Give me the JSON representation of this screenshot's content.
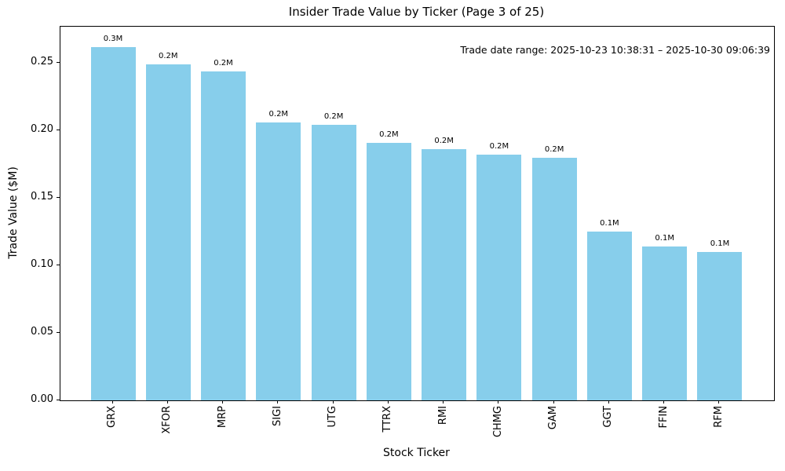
{
  "chart_data": {
    "type": "bar",
    "title": "Insider Trade Value by Ticker (Page 3 of 25)",
    "xlabel": "Stock Ticker",
    "ylabel": "Trade Value ($M)",
    "annotation": "Trade date range: 2025-10-23 10:38:31 – 2025-10-30 09:06:39",
    "categories": [
      "GRX",
      "XFOR",
      "MRP",
      "SIGI",
      "UTG",
      "TTRX",
      "RMI",
      "CHMG",
      "GAM",
      "GGT",
      "FFIN",
      "RFM"
    ],
    "values": [
      0.262,
      0.249,
      0.244,
      0.206,
      0.204,
      0.191,
      0.186,
      0.182,
      0.18,
      0.125,
      0.114,
      0.11
    ],
    "bar_labels": [
      "0.3M",
      "0.2M",
      "0.2M",
      "0.2M",
      "0.2M",
      "0.2M",
      "0.2M",
      "0.2M",
      "0.2M",
      "0.1M",
      "0.1M",
      "0.1M"
    ],
    "ylim": [
      0,
      0.277
    ],
    "yticks": [
      0,
      0.05,
      0.1,
      0.15,
      0.2,
      0.25
    ],
    "ytick_labels": [
      "0.00",
      "0.05",
      "0.10",
      "0.15",
      "0.20",
      "0.25"
    ],
    "bar_color": "#87CEEB",
    "grid": false,
    "legend": null
  }
}
